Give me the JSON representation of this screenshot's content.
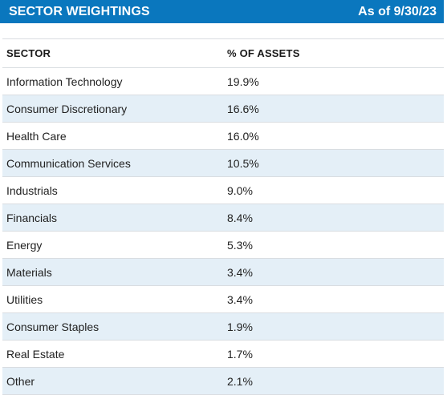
{
  "header": {
    "title": "SECTOR WEIGHTINGS",
    "date": "As of 9/30/23"
  },
  "table": {
    "columns": [
      "SECTOR",
      "% OF ASSETS"
    ],
    "rows": [
      {
        "sector": "Information Technology",
        "pct": "19.9%"
      },
      {
        "sector": "Consumer Discretionary",
        "pct": "16.6%"
      },
      {
        "sector": "Health Care",
        "pct": "16.0%"
      },
      {
        "sector": "Communication Services",
        "pct": "10.5%"
      },
      {
        "sector": "Industrials",
        "pct": "9.0%"
      },
      {
        "sector": "Financials",
        "pct": "8.4%"
      },
      {
        "sector": "Energy",
        "pct": "5.3%"
      },
      {
        "sector": "Materials",
        "pct": "3.4%"
      },
      {
        "sector": "Utilities",
        "pct": "3.4%"
      },
      {
        "sector": "Consumer Staples",
        "pct": "1.9%"
      },
      {
        "sector": "Real Estate",
        "pct": "1.7%"
      },
      {
        "sector": "Other",
        "pct": "2.1%"
      }
    ]
  },
  "colors": {
    "header_bg": "#0a77be",
    "row_alt_bg": "#e4eff7",
    "divider": "#d9dde1"
  }
}
